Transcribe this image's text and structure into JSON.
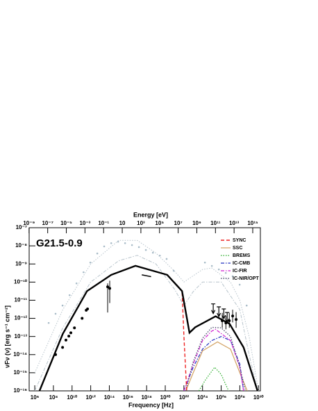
{
  "chart_data": {
    "type": "line",
    "annotation": "G21.5-0.9",
    "xlabel": "Frequency [Hz]",
    "ylabel": "νFν (ν) [erg s⁻¹ cm⁻²]",
    "x2label": "Energy [eV]",
    "xscale": "log",
    "yscale": "log",
    "xlim": [
      250000.0,
      1.6e+30
    ],
    "ylim": [
      1e-16,
      1e-07
    ],
    "x2lim": [
      1.03e-09,
      6600000000000000.0
    ],
    "xticks": [
      {
        "value": 1000000.0,
        "label": "10⁶"
      },
      {
        "value": 100000000.0,
        "label": "10⁸"
      },
      {
        "value": 10000000000.0,
        "label": "10¹⁰"
      },
      {
        "value": 1000000000000.0,
        "label": "10¹²"
      },
      {
        "value": 100000000000000.0,
        "label": "10¹⁴"
      },
      {
        "value": 1e+16,
        "label": "10¹⁶"
      },
      {
        "value": 1e+18,
        "label": "10¹⁸"
      },
      {
        "value": 1e+20,
        "label": "10²⁰"
      },
      {
        "value": 1e+22,
        "label": "10²²"
      },
      {
        "value": 1e+24,
        "label": "10²⁴"
      },
      {
        "value": 1e+26,
        "label": "10²⁶"
      },
      {
        "value": 1e+28,
        "label": "10²⁸"
      },
      {
        "value": 1e+30,
        "label": "10³⁰"
      }
    ],
    "x2ticks": [
      {
        "value": 1e-09,
        "label": "10⁻⁹"
      },
      {
        "value": 1e-07,
        "label": "10⁻⁷"
      },
      {
        "value": 1e-05,
        "label": "10⁻⁵"
      },
      {
        "value": 0.001,
        "label": "10⁻³"
      },
      {
        "value": 0.1,
        "label": "10⁻¹"
      },
      10,
      {
        "value": 1000.0,
        "label": "10³"
      },
      {
        "value": 100000.0,
        "label": "10⁵"
      },
      {
        "value": 10000000.0,
        "label": "10⁷"
      },
      {
        "value": 1000000000.0,
        "label": "10⁹"
      },
      {
        "value": 100000000000.0,
        "label": "10¹¹"
      },
      {
        "value": 10000000000000.0,
        "label": "10¹³"
      },
      {
        "value": 1000000000000000.0,
        "label": "10¹⁵"
      }
    ],
    "yticks": [
      {
        "value": 1e-16,
        "label": "10⁻¹⁶"
      },
      {
        "value": 1e-15,
        "label": "10⁻¹⁵"
      },
      {
        "value": 1e-14,
        "label": "10⁻¹⁴"
      },
      {
        "value": 1e-13,
        "label": "10⁻¹³"
      },
      {
        "value": 1e-12,
        "label": "10⁻¹²"
      },
      {
        "value": 1e-11,
        "label": "10⁻¹¹"
      },
      {
        "value": 1e-10,
        "label": "10⁻¹⁰"
      },
      {
        "value": 1e-09,
        "label": "10⁻⁹"
      },
      {
        "value": 1e-08,
        "label": "10⁻⁸"
      },
      {
        "value": 1e-07,
        "label": "10⁻⁷"
      }
    ],
    "legend": "top-right",
    "series": [
      {
        "kind": "points",
        "color": "#a9bcc8",
        "x": [
          31000000.0,
          170000000.0,
          960000000.0,
          5400000000.0,
          30000000000.0,
          170000000000.0,
          920000000000.0,
          5100000000000.0,
          28000000000000.0,
          160000000000000.0,
          870000000000000.0,
          4900000000000000.0,
          2.7e+16,
          1.5e+17,
          8.3e+17,
          4.7e+18,
          2.6e+19,
          1.4e+20,
          8e+20,
          1.8e+24,
          1e+25,
          5.6e+25,
          3.1e+26,
          1.7e+27,
          9.6e+27,
          5.4e+28
        ],
        "values": [
          5.6e-13,
          1.8e-12,
          5.1e-12,
          1.9e-11,
          8.5e-11,
          3.5e-10,
          1.2e-09,
          3.8e-09,
          9.3e-09,
          1.4e-08,
          1.7e-08,
          1.4e-08,
          1.1e-08,
          8.5e-09,
          5.9e-09,
          4.2e-09,
          2.9e-09,
          1.9e-09,
          4.2e-10,
          1.2e-09,
          7.8e-10,
          5e-10,
          3.2e-10,
          2.1e-10,
          7.2e-11,
          5.1e-12
        ]
      },
      {
        "kind": "line",
        "color": "#b8c4cc",
        "linestyle": "dotted",
        "width": 1,
        "x": [
          1000000.0,
          1000000000.0,
          1000000000000.0,
          1000000000000000.0,
          1e+17,
          1e+19,
          1e+21,
          1e+22,
          1e+24,
          1e+25,
          1e+27,
          1e+28,
          1e+29,
          1e+30
        ],
        "values": [
          1e-15,
          3e-12,
          1e-09,
          2e-08,
          2e-08,
          4e-09,
          4e-10,
          1e-10,
          5e-10,
          6e-10,
          1e-10,
          1e-11,
          1e-13,
          1e-16
        ]
      },
      {
        "kind": "line",
        "color": "#b8c4cc",
        "linestyle": "dashdot",
        "width": 1,
        "x": [
          1000000.0,
          1000000000.0,
          1000000000000.0,
          1000000000000000.0,
          1e+17,
          1e+19,
          1e+21,
          1e+22,
          1e+23,
          1e+24,
          1e+26,
          1e+28,
          1e+29,
          8e+29
        ],
        "values": [
          1e-16,
          3e-13,
          1e-10,
          1.5e-09,
          3e-09,
          1e-09,
          4e-11,
          5e-12,
          3e-11,
          1e-10,
          1e-10,
          3e-12,
          1e-14,
          1e-16
        ]
      },
      {
        "name": "BREMS",
        "kind": "line",
        "color": "#22aa22",
        "linestyle": "dotted",
        "width": 1.2,
        "x": [
          4e+23,
          2e+24,
          2e+25,
          1e+26,
          6.3e+26
        ],
        "values": [
          1e-16,
          4e-16,
          2e-15,
          8e-16,
          1e-16
        ]
      },
      {
        "name": "SSC",
        "kind": "line",
        "color": "#d2a060",
        "linestyle": "solid",
        "width": 1.2,
        "x": [
          1.6e+22,
          1e+23,
          1e+24,
          4e+25,
          1e+27,
          1e+28,
          6.3e+28
        ],
        "values": [
          1e-16,
          1e-15,
          1.6e-14,
          5e-14,
          2e-14,
          1e-15,
          1e-16
        ]
      },
      {
        "name": "IC-CMB",
        "kind": "line",
        "color": "#2030c0",
        "linestyle": "dashdot",
        "width": 1.2,
        "x": [
          1e+22,
          1e+23,
          1e+24,
          1e+25,
          1e+26,
          1e+27,
          1e+28,
          2.5e+28
        ],
        "values": [
          1e-16,
          2e-15,
          2e-14,
          6e-14,
          1e-13,
          6e-14,
          3e-15,
          1e-16
        ]
      },
      {
        "name": "IC-FIR",
        "kind": "line",
        "color": "#d020d0",
        "linestyle": "dashdot",
        "width": 1.2,
        "x": [
          1e+22,
          1e+23,
          1e+24,
          1e+25,
          2.5e+25,
          1e+27,
          1e+28,
          2.5e+28
        ],
        "values": [
          1e-16,
          3e-15,
          6e-14,
          2e-13,
          2.5e-13,
          6e-14,
          2e-15,
          1e-16
        ]
      },
      {
        "name": "IC-NIR/OPT",
        "kind": "line",
        "color": "#505070",
        "linestyle": "dotted",
        "width": 1.4,
        "x": [
          1.6e+22,
          1e+23,
          1e+24,
          1e+25,
          1e+26,
          1e+27,
          1e+28,
          4e+28
        ],
        "values": [
          1e-16,
          4e-15,
          8e-14,
          3.2e-13,
          3e-13,
          1e-13,
          2e-15,
          1e-16
        ]
      },
      {
        "name": "SYNC",
        "kind": "line",
        "color": "#ee2020",
        "linestyle": "dashed",
        "width": 1.4,
        "x": [
          3200000.0,
          1000000000.0,
          400000000000.0,
          160000000000000.0,
          6.3e+16,
          1.6e+20,
          6.3e+21,
          1e+22,
          2e+22
        ],
        "values": [
          1e-16,
          1.4e-13,
          3.2e-11,
          2.5e-10,
          7.9e-10,
          2.5e-10,
          3.2e-11,
          1e-13,
          1e-16
        ]
      },
      {
        "kind": "line",
        "color": "#000000",
        "linestyle": "solid",
        "width": 2.4,
        "x": [
          3200000.0,
          1000000000.0,
          400000000000.0,
          160000000000000.0,
          6.3e+16,
          1.6e+20,
          6.3e+21,
          4e+22,
          1.6e+23,
          2.5e+25,
          7.9e+26,
          2.5e+28,
          7.9e+29
        ],
        "values": [
          1e-16,
          1.4e-13,
          3.2e-11,
          2.5e-10,
          7.9e-10,
          2.5e-10,
          3.2e-11,
          1.6e-13,
          3.2e-13,
          1.3e-12,
          5e-13,
          2.5e-14,
          1e-16
        ]
      },
      {
        "kind": "line",
        "color": "#000000",
        "linestyle": "solid",
        "width": 1.5,
        "x": [
          3e+17,
          3e+18
        ],
        "values": [
          2.5e-10,
          2e-10
        ]
      },
      {
        "kind": "points",
        "color": "#000000",
        "errorbars": true,
        "x": [
          170000000.0,
          960000000.0,
          2200000000.0,
          4500000000.0,
          7400000000.0,
          18000000000.0,
          120000000000.0,
          330000000000.0,
          460000000000.0,
          66000000000000.0,
          110000000000000.0,
          1.3e+26,
          3.2e+26,
          7.4e+26,
          1.7e+27,
          4e+27
        ],
        "values": [
          1e-14,
          2.5e-14,
          6.3e-14,
          1.05e-13,
          1.6e-13,
          3e-13,
          1e-12,
          2.8e-12,
          3.3e-12,
          5.5e-11,
          4.5e-11,
          7.4e-13,
          5.6e-13,
          7.4e-13,
          1.35e-12,
          8.7e-13
        ],
        "lower": [
          null,
          null,
          null,
          null,
          null,
          null,
          null,
          null,
          null,
          2.1e-12,
          7e-12,
          3e-13,
          2.5e-13,
          3e-13,
          6e-13,
          3e-13
        ],
        "upper": [
          null,
          null,
          null,
          null,
          null,
          null,
          null,
          null,
          null,
          8.5e-11,
          1.2e-10,
          2e-12,
          1.4e-12,
          2e-12,
          3e-12,
          2.2e-12
        ]
      },
      {
        "kind": "upperlimits",
        "color": "#000000",
        "x": [
          1.4e+25,
          5.6e+25,
          1.9e+26,
          4.4e+26
        ],
        "values": [
          6.3e-12,
          4.3e-12,
          3.3e-12,
          2.1e-12
        ]
      }
    ]
  }
}
